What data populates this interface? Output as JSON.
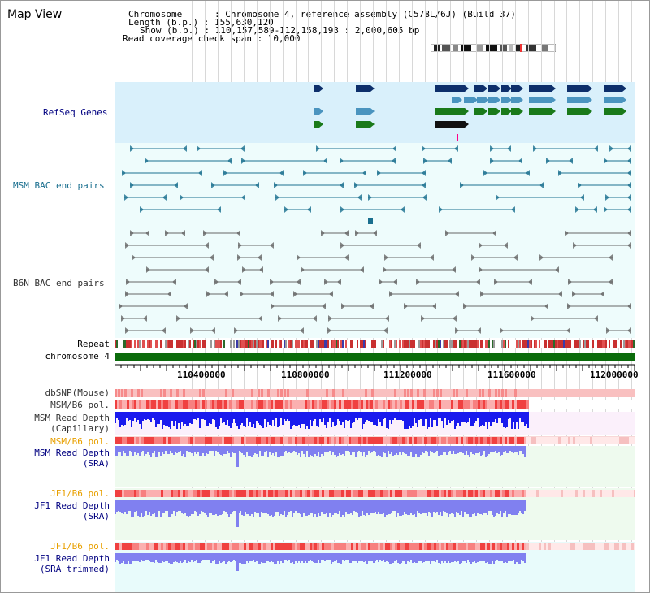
{
  "title": "Map View",
  "header": {
    "chromosome_line": "Chromosome      : Chromosome 4, reference assembly (C57BL/6J) (Build 37)",
    "length_line": "Length (b.p.) : 155,630,120",
    "show_line": "Show (b.p.) : 110,157,589-112,158,193 : 2,000,605 bp",
    "read_span_line": "Read coverage check span : 10,000"
  },
  "tracks": {
    "refseq": "RefSeq Genes",
    "msm_bac": "MSM BAC end pairs",
    "b6n_bac": "B6N BAC end pairs",
    "repeat": "Repeat",
    "chromosome": "chromosome 4",
    "dbsnp": "dbSNP(Mouse)",
    "msm_b6_pol": "MSM/B6 pol.",
    "msm_depth_cap_1": "MSM Read Depth",
    "msm_depth_cap_2": "(Capillary)",
    "msm_b6_pol_2": "MSM/B6 pol.",
    "msm_depth_sra_1": "MSM Read Depth",
    "msm_depth_sra_2": "(SRA)",
    "jf1_b6_pol": "JF1/B6 pol.",
    "jf1_depth_sra_1": "JF1 Read Depth",
    "jf1_depth_sra_2": "(SRA)",
    "jf1_b6_pol_2": "JF1/B6 pol.",
    "jf1_depth_trim_1": "JF1 Read Depth",
    "jf1_depth_trim_2": "(SRA trimmed)"
  },
  "ruler": {
    "ticks": [
      "110400000",
      "110800000",
      "111200000",
      "111600000",
      "112000000"
    ]
  },
  "colors": {
    "refseq_bg": "#d9f0fb",
    "track_bg": "#e8fbfb",
    "gene_navy": "#0d2f6b",
    "gene_teal": "#4a94bf",
    "gene_green": "#1a7a1a",
    "msm_bac": "#1a6f8f",
    "b6n_bac": "#666666",
    "chrom": "#0b6b0b",
    "depth_blue": "#1a1aee",
    "depth_lavender": "#8080f0"
  }
}
